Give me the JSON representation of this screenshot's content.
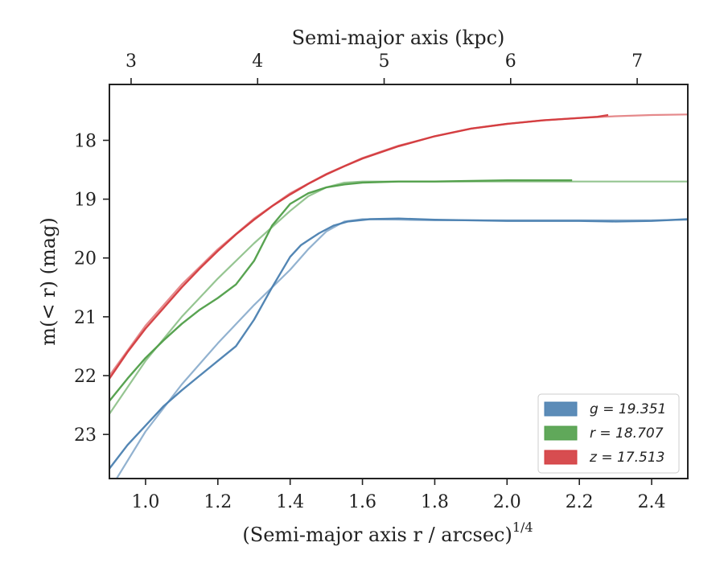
{
  "chart_data": {
    "type": "line",
    "xlabel": "(Semi-major axis r / arcsec)",
    "xlabel_sup": "1/4",
    "ylabel": "m(< r) (mag)",
    "top_xlabel": "Semi-major axis (kpc)",
    "xlim": [
      0.9,
      2.5
    ],
    "ylim": [
      23.75,
      17.05
    ],
    "y_inverted": true,
    "xticks": [
      1.0,
      1.2,
      1.4,
      1.6,
      1.8,
      2.0,
      2.2,
      2.4
    ],
    "xtick_labels": [
      "1.0",
      "1.2",
      "1.4",
      "1.6",
      "1.8",
      "2.0",
      "2.2",
      "2.4"
    ],
    "yticks": [
      18,
      19,
      20,
      21,
      22,
      23
    ],
    "ytick_labels": [
      "18",
      "19",
      "20",
      "21",
      "22",
      "23"
    ],
    "top_ticks": [
      3,
      4,
      5,
      6,
      7
    ],
    "top_tick_labels": [
      "3",
      "4",
      "5",
      "6",
      "7"
    ],
    "top_tick_positions": [
      0.96,
      1.31,
      1.66,
      2.01,
      2.36
    ],
    "legend_position": "lower-right",
    "series": [
      {
        "name": "g = 19.351",
        "color": "#4a7fb0",
        "data": [
          [
            0.9,
            23.58
          ],
          [
            0.95,
            23.18
          ],
          [
            1.0,
            22.85
          ],
          [
            1.05,
            22.52
          ],
          [
            1.1,
            22.25
          ],
          [
            1.15,
            22.0
          ],
          [
            1.2,
            21.75
          ],
          [
            1.25,
            21.5
          ],
          [
            1.3,
            21.05
          ],
          [
            1.35,
            20.5
          ],
          [
            1.4,
            19.98
          ],
          [
            1.43,
            19.78
          ],
          [
            1.48,
            19.58
          ],
          [
            1.52,
            19.45
          ],
          [
            1.56,
            19.38
          ],
          [
            1.62,
            19.34
          ],
          [
            1.7,
            19.33
          ],
          [
            1.8,
            19.35
          ],
          [
            1.9,
            19.36
          ],
          [
            2.0,
            19.37
          ],
          [
            2.1,
            19.37
          ],
          [
            2.2,
            19.37
          ],
          [
            2.3,
            19.38
          ],
          [
            2.4,
            19.37
          ],
          [
            2.5,
            19.34
          ]
        ],
        "model": [
          [
            0.9,
            23.95
          ],
          [
            1.0,
            22.95
          ],
          [
            1.1,
            22.15
          ],
          [
            1.2,
            21.45
          ],
          [
            1.3,
            20.8
          ],
          [
            1.4,
            20.2
          ],
          [
            1.45,
            19.85
          ],
          [
            1.5,
            19.55
          ],
          [
            1.55,
            19.38
          ],
          [
            1.6,
            19.34
          ],
          [
            1.7,
            19.35
          ],
          [
            1.8,
            19.36
          ],
          [
            2.0,
            19.36
          ],
          [
            2.2,
            19.36
          ],
          [
            2.4,
            19.36
          ],
          [
            2.5,
            19.35
          ]
        ]
      },
      {
        "name": "r = 18.707",
        "color": "#4f9e48",
        "data": [
          [
            0.9,
            22.43
          ],
          [
            0.95,
            22.05
          ],
          [
            1.0,
            21.7
          ],
          [
            1.05,
            21.4
          ],
          [
            1.1,
            21.12
          ],
          [
            1.15,
            20.88
          ],
          [
            1.2,
            20.68
          ],
          [
            1.25,
            20.45
          ],
          [
            1.3,
            20.05
          ],
          [
            1.35,
            19.45
          ],
          [
            1.4,
            19.08
          ],
          [
            1.45,
            18.9
          ],
          [
            1.5,
            18.8
          ],
          [
            1.55,
            18.75
          ],
          [
            1.6,
            18.72
          ],
          [
            1.7,
            18.7
          ],
          [
            1.8,
            18.7
          ],
          [
            1.9,
            18.69
          ],
          [
            2.0,
            18.68
          ],
          [
            2.1,
            18.68
          ],
          [
            2.18,
            18.68
          ]
        ],
        "model": [
          [
            0.9,
            22.65
          ],
          [
            1.0,
            21.75
          ],
          [
            1.1,
            21.0
          ],
          [
            1.2,
            20.35
          ],
          [
            1.3,
            19.75
          ],
          [
            1.4,
            19.2
          ],
          [
            1.45,
            18.95
          ],
          [
            1.5,
            18.8
          ],
          [
            1.55,
            18.72
          ],
          [
            1.6,
            18.7
          ],
          [
            1.8,
            18.7
          ],
          [
            2.0,
            18.7
          ],
          [
            2.2,
            18.7
          ],
          [
            2.4,
            18.7
          ],
          [
            2.5,
            18.7
          ]
        ]
      },
      {
        "name": "z = 17.513",
        "color": "#d33a3d",
        "data": [
          [
            0.9,
            22.05
          ],
          [
            0.95,
            21.6
          ],
          [
            1.0,
            21.2
          ],
          [
            1.05,
            20.85
          ],
          [
            1.1,
            20.5
          ],
          [
            1.15,
            20.18
          ],
          [
            1.2,
            19.88
          ],
          [
            1.25,
            19.6
          ],
          [
            1.3,
            19.35
          ],
          [
            1.35,
            19.12
          ],
          [
            1.4,
            18.92
          ],
          [
            1.45,
            18.74
          ],
          [
            1.5,
            18.58
          ],
          [
            1.55,
            18.44
          ],
          [
            1.6,
            18.31
          ],
          [
            1.7,
            18.1
          ],
          [
            1.8,
            17.93
          ],
          [
            1.9,
            17.8
          ],
          [
            2.0,
            17.72
          ],
          [
            2.1,
            17.66
          ],
          [
            2.2,
            17.62
          ],
          [
            2.25,
            17.6
          ],
          [
            2.28,
            17.57
          ]
        ],
        "model": [
          [
            0.9,
            22.0
          ],
          [
            1.0,
            21.15
          ],
          [
            1.1,
            20.45
          ],
          [
            1.2,
            19.85
          ],
          [
            1.3,
            19.33
          ],
          [
            1.4,
            18.9
          ],
          [
            1.5,
            18.57
          ],
          [
            1.6,
            18.3
          ],
          [
            1.7,
            18.09
          ],
          [
            1.8,
            17.93
          ],
          [
            1.9,
            17.8
          ],
          [
            2.0,
            17.72
          ],
          [
            2.1,
            17.66
          ],
          [
            2.2,
            17.62
          ],
          [
            2.3,
            17.59
          ],
          [
            2.4,
            17.57
          ],
          [
            2.5,
            17.56
          ]
        ]
      }
    ]
  }
}
